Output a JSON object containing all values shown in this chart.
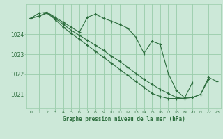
{
  "background_color": "#cce8d8",
  "plot_bg_color": "#cce8d8",
  "grid_color": "#99ccaa",
  "line_color": "#2d6e3e",
  "marker_color": "#2d6e3e",
  "xlabel": "Graphe pression niveau de la mer (hPa)",
  "xlim": [
    -0.5,
    23.5
  ],
  "ylim": [
    1020.3,
    1025.5
  ],
  "yticks": [
    1021,
    1022,
    1023,
    1024
  ],
  "xticks": [
    0,
    1,
    2,
    3,
    4,
    5,
    6,
    7,
    8,
    9,
    10,
    11,
    12,
    13,
    14,
    15,
    16,
    17,
    18,
    19,
    20,
    21,
    22,
    23
  ],
  "series": [
    {
      "x": [
        0,
        1,
        2,
        3,
        4,
        5,
        6,
        7,
        8,
        9,
        10,
        11,
        12,
        13,
        14,
        15,
        16,
        17,
        18,
        19,
        20,
        21,
        22,
        23
      ],
      "y": [
        1024.8,
        1025.05,
        1025.1,
        1024.85,
        1024.6,
        1024.35,
        1024.1,
        1024.85,
        1025.0,
        1024.8,
        1024.65,
        1024.5,
        1024.3,
        1023.85,
        1023.05,
        1023.65,
        1023.5,
        1022.05,
        1021.2,
        1020.85,
        1020.85,
        1021.0,
        1021.85,
        1021.65
      ]
    },
    {
      "x": [
        0,
        1,
        2,
        3,
        4,
        5,
        6,
        7,
        8,
        9,
        10,
        11,
        12,
        13,
        14,
        15,
        16,
        17,
        18,
        19,
        20,
        21,
        22
      ],
      "y": [
        1024.8,
        1024.9,
        1025.1,
        1024.8,
        1024.5,
        1024.2,
        1023.95,
        1023.7,
        1023.45,
        1023.2,
        1022.9,
        1022.65,
        1022.35,
        1022.05,
        1021.75,
        1021.5,
        1021.25,
        1021.05,
        1020.85,
        1020.8,
        1020.85,
        1021.0,
        1021.75
      ]
    },
    {
      "x": [
        0,
        1,
        2,
        3,
        4,
        5,
        6,
        7,
        8,
        9,
        10,
        11,
        12,
        13,
        14,
        15,
        16,
        17,
        18,
        19,
        20
      ],
      "y": [
        1024.8,
        1024.9,
        1025.05,
        1024.75,
        1024.35,
        1024.05,
        1023.75,
        1023.45,
        1023.15,
        1022.85,
        1022.55,
        1022.25,
        1021.95,
        1021.65,
        1021.35,
        1021.05,
        1020.9,
        1020.8,
        1020.8,
        1020.8,
        1021.6
      ]
    }
  ]
}
